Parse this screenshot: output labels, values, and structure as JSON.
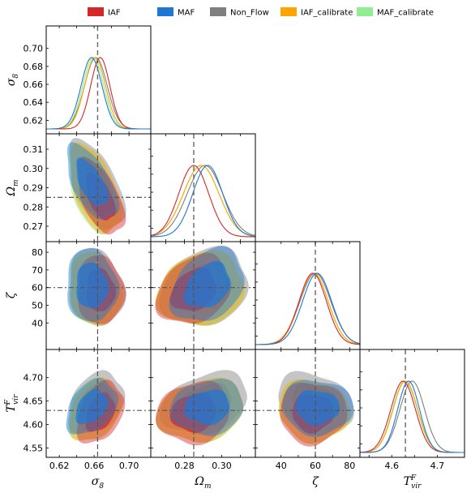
{
  "chart_data": {
    "type": "corner",
    "legend": {
      "placement": "top",
      "entries": [
        {
          "label": "IAF",
          "color": "#d62728"
        },
        {
          "label": "MAF",
          "color": "#1f77d4"
        },
        {
          "label": "Non_Flow",
          "color": "#7f7f7f"
        },
        {
          "label": "IAF_calibrate",
          "color": "#ffa500"
        },
        {
          "label": "MAF_calibrate",
          "color": "#90ee90"
        }
      ]
    },
    "parameters": [
      {
        "label": "σ₈",
        "range": [
          0.605,
          0.725
        ],
        "ticks": [
          0.62,
          0.64,
          0.66,
          0.68,
          0.7
        ],
        "tick_labels_x": [
          "0.62",
          "0.66",
          "0.70"
        ],
        "tick_values_x": [
          0.62,
          0.66,
          0.7
        ],
        "truth": 0.664
      },
      {
        "label": "Ωₘ",
        "range": [
          0.262,
          0.318
        ],
        "ticks": [
          0.27,
          0.28,
          0.29,
          0.3,
          0.31
        ],
        "tick_labels_x": [
          "0.28",
          "0.30"
        ],
        "tick_values_x": [
          0.28,
          0.3
        ],
        "truth": 0.285
      },
      {
        "label": "ζ",
        "range": [
          25,
          86
        ],
        "ticks": [
          40,
          50,
          60,
          70,
          80
        ],
        "tick_labels_x": [
          "40",
          "60",
          "80"
        ],
        "tick_values_x": [
          40,
          60,
          80
        ],
        "truth": 60.0
      },
      {
        "label": "T_vir^F",
        "range": [
          4.53,
          4.76
        ],
        "ticks": [
          4.55,
          4.6,
          4.65,
          4.7
        ],
        "tick_labels_x": [
          "4.6",
          "4.7"
        ],
        "tick_values_x": [
          4.6,
          4.7
        ],
        "truth": 4.63
      }
    ],
    "y_tick_labels": {
      "0": [
        "0.62",
        "0.64",
        "0.66",
        "0.68",
        "0.70"
      ],
      "1": [
        "0.27",
        "0.28",
        "0.29",
        "0.30",
        "0.31"
      ],
      "2": [
        "40",
        "50",
        "60",
        "70",
        "80"
      ],
      "3": [
        "4.55",
        "4.60",
        "4.65",
        "4.70"
      ]
    },
    "series": [
      {
        "name": "IAF",
        "color": "#d62728",
        "mean": [
          0.667,
          0.285,
          58.5,
          4.625
        ],
        "sigma": [
          0.011,
          0.008,
          8.0,
          0.027
        ],
        "corr": [
          [
            1,
            -0.55,
            -0.05,
            0.35
          ],
          [
            -0.55,
            1,
            0.25,
            0.1
          ],
          [
            -0.05,
            0.25,
            1,
            0.0
          ],
          [
            0.35,
            0.1,
            0.0,
            1
          ]
        ]
      },
      {
        "name": "MAF",
        "color": "#1f77d4",
        "mean": [
          0.657,
          0.2925,
          61.0,
          4.637
        ],
        "sigma": [
          0.012,
          0.008,
          8.5,
          0.024
        ],
        "corr": [
          [
            1,
            -0.6,
            -0.05,
            0.35
          ],
          [
            -0.6,
            1,
            0.3,
            0.1
          ],
          [
            -0.05,
            0.3,
            1,
            -0.05
          ],
          [
            0.35,
            0.1,
            -0.05,
            1
          ]
        ]
      },
      {
        "name": "Non_Flow",
        "color": "#7f7f7f",
        "mean": [
          0.662,
          0.291,
          60.0,
          4.645
        ],
        "sigma": [
          0.013,
          0.0095,
          9.0,
          0.027
        ],
        "corr": [
          [
            1,
            -0.55,
            -0.15,
            0.3
          ],
          [
            -0.55,
            1,
            0.2,
            0.3
          ],
          [
            -0.15,
            0.2,
            1,
            -0.25
          ],
          [
            0.3,
            0.3,
            -0.25,
            1
          ]
        ]
      },
      {
        "name": "IAF_calibrate",
        "color": "#ffa500",
        "mean": [
          0.661,
          0.289,
          59.0,
          4.63
        ],
        "sigma": [
          0.012,
          0.0095,
          8.5,
          0.027
        ],
        "corr": [
          [
            1,
            -0.5,
            -0.15,
            0.3
          ],
          [
            -0.5,
            1,
            0.15,
            0.2
          ],
          [
            -0.15,
            0.15,
            1,
            -0.1
          ],
          [
            0.3,
            0.2,
            -0.1,
            1
          ]
        ]
      },
      {
        "name": "MAF_calibrate",
        "color": "#90ee90",
        "mean": [
          0.659,
          0.289,
          59.0,
          4.629
        ],
        "sigma": [
          0.012,
          0.0095,
          8.5,
          0.027
        ],
        "corr": [
          [
            1,
            -0.5,
            -0.15,
            0.2
          ],
          [
            -0.5,
            1,
            0.15,
            0.2
          ],
          [
            -0.15,
            0.15,
            1,
            -0.1
          ],
          [
            0.2,
            0.2,
            -0.1,
            1
          ]
        ]
      }
    ],
    "contour_levels": [
      "68%",
      "95%"
    ]
  }
}
